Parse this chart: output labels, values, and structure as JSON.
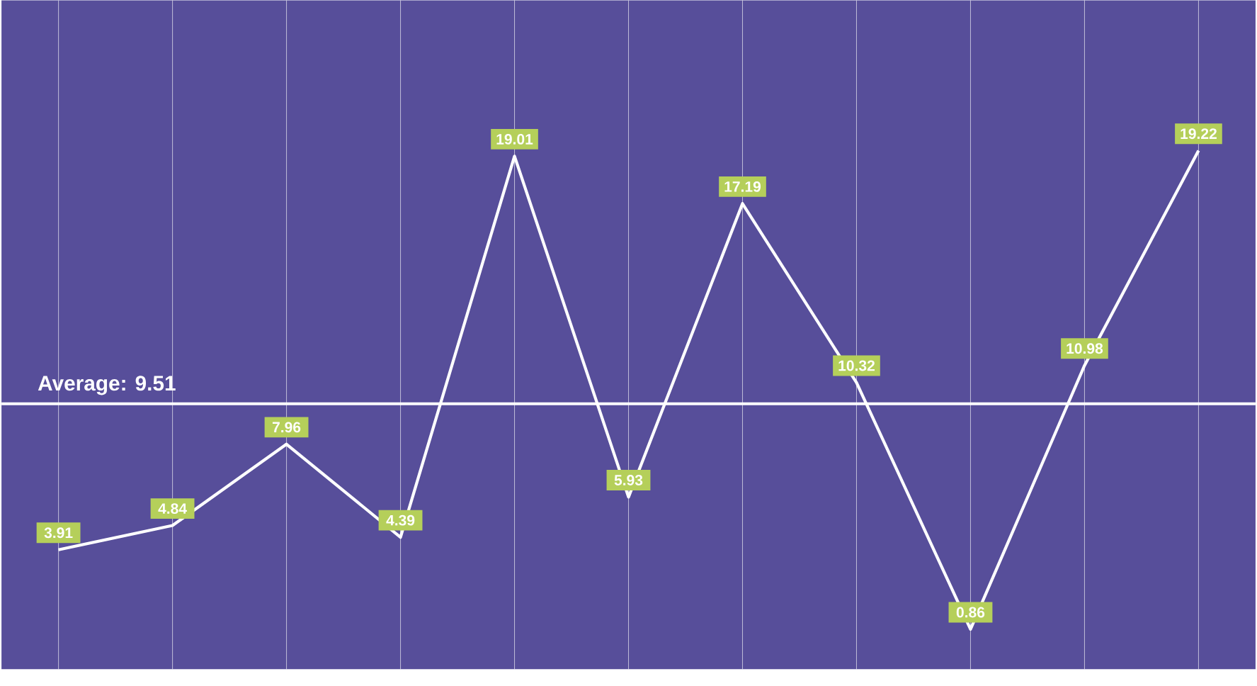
{
  "chart_data": {
    "type": "line",
    "categories": [
      null,
      null,
      null,
      null,
      null,
      null,
      null,
      null,
      null,
      null,
      null
    ],
    "series": [
      {
        "color": "#ffffff",
        "values": [
          3.91,
          4.84,
          7.96,
          4.39,
          19.01,
          5.93,
          17.19,
          10.32,
          0.86,
          10.98,
          19.22
        ]
      }
    ],
    "data_labels": true,
    "grid": "x",
    "marker": "none",
    "line_style": "solid",
    "ref_lines": [
      {
        "axis": "y",
        "value": 9.51,
        "label": "Average:  9.51",
        "color": "#ffffff"
      }
    ]
  }
}
